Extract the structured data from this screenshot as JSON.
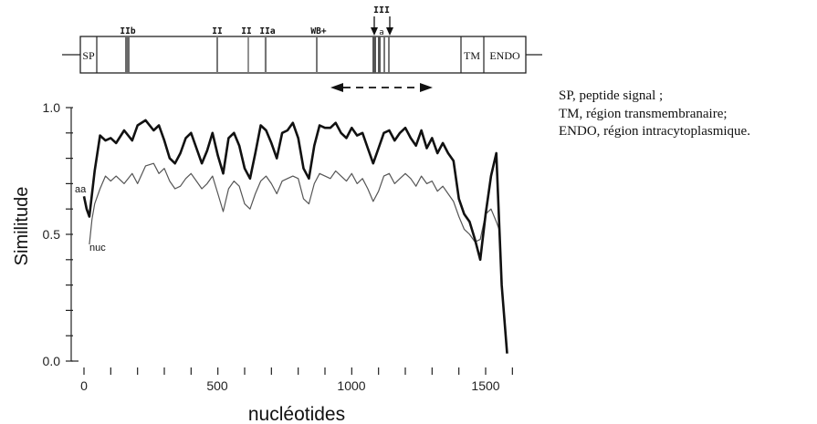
{
  "chart_data": {
    "type": "line",
    "ylabel": "Similitude",
    "xlabel": "nucléotides",
    "xlim": [
      0,
      1600
    ],
    "ylim": [
      0,
      1.0
    ],
    "x_ticks": [
      "0",
      "500",
      "1000",
      "1500"
    ],
    "y_ticks": [
      "0.0",
      "0.5",
      "1.0"
    ],
    "series": [
      {
        "name": "aa",
        "x": [
          0,
          10,
          20,
          40,
          60,
          80,
          100,
          120,
          150,
          180,
          200,
          230,
          260,
          280,
          300,
          320,
          340,
          360,
          380,
          400,
          420,
          440,
          460,
          480,
          500,
          520,
          540,
          560,
          580,
          600,
          620,
          640,
          660,
          680,
          700,
          720,
          740,
          760,
          780,
          800,
          820,
          840,
          860,
          880,
          900,
          920,
          940,
          960,
          980,
          1000,
          1020,
          1040,
          1060,
          1080,
          1100,
          1120,
          1140,
          1160,
          1180,
          1200,
          1220,
          1240,
          1260,
          1280,
          1300,
          1320,
          1340,
          1360,
          1380,
          1400,
          1420,
          1440,
          1460,
          1480,
          1500,
          1520,
          1540,
          1560,
          1580
        ],
        "values": [
          0.65,
          0.6,
          0.57,
          0.75,
          0.89,
          0.87,
          0.88,
          0.86,
          0.91,
          0.87,
          0.93,
          0.95,
          0.91,
          0.93,
          0.87,
          0.8,
          0.78,
          0.82,
          0.88,
          0.9,
          0.84,
          0.78,
          0.83,
          0.9,
          0.81,
          0.74,
          0.88,
          0.9,
          0.85,
          0.76,
          0.72,
          0.82,
          0.93,
          0.91,
          0.86,
          0.8,
          0.9,
          0.91,
          0.94,
          0.88,
          0.76,
          0.72,
          0.85,
          0.93,
          0.92,
          0.92,
          0.94,
          0.9,
          0.88,
          0.92,
          0.89,
          0.9,
          0.84,
          0.78,
          0.84,
          0.9,
          0.91,
          0.87,
          0.9,
          0.92,
          0.88,
          0.85,
          0.91,
          0.84,
          0.88,
          0.82,
          0.86,
          0.82,
          0.79,
          0.64,
          0.58,
          0.55,
          0.48,
          0.4,
          0.58,
          0.73,
          0.82,
          0.3,
          0.03
        ]
      },
      {
        "name": "nuc",
        "x": [
          20,
          30,
          40,
          60,
          80,
          100,
          120,
          150,
          180,
          200,
          230,
          260,
          280,
          300,
          320,
          340,
          360,
          380,
          400,
          420,
          440,
          460,
          480,
          500,
          520,
          540,
          560,
          580,
          600,
          620,
          640,
          660,
          680,
          700,
          720,
          740,
          760,
          780,
          800,
          820,
          840,
          860,
          880,
          900,
          920,
          940,
          960,
          980,
          1000,
          1020,
          1040,
          1060,
          1080,
          1100,
          1120,
          1140,
          1160,
          1180,
          1200,
          1220,
          1240,
          1260,
          1280,
          1300,
          1320,
          1340,
          1360,
          1380,
          1400,
          1420,
          1440,
          1460,
          1480,
          1500,
          1520,
          1540,
          1550
        ],
        "values": [
          0.46,
          0.56,
          0.62,
          0.68,
          0.73,
          0.71,
          0.73,
          0.7,
          0.74,
          0.7,
          0.77,
          0.78,
          0.74,
          0.76,
          0.71,
          0.68,
          0.69,
          0.72,
          0.74,
          0.71,
          0.68,
          0.7,
          0.73,
          0.66,
          0.59,
          0.68,
          0.71,
          0.69,
          0.62,
          0.6,
          0.66,
          0.71,
          0.73,
          0.7,
          0.66,
          0.71,
          0.72,
          0.73,
          0.72,
          0.64,
          0.62,
          0.7,
          0.74,
          0.73,
          0.72,
          0.75,
          0.73,
          0.71,
          0.74,
          0.7,
          0.72,
          0.68,
          0.63,
          0.67,
          0.73,
          0.74,
          0.7,
          0.72,
          0.74,
          0.72,
          0.69,
          0.73,
          0.7,
          0.71,
          0.67,
          0.69,
          0.66,
          0.63,
          0.57,
          0.52,
          0.5,
          0.47,
          0.48,
          0.58,
          0.6,
          0.55,
          0.52
        ]
      }
    ]
  },
  "gene_map": {
    "segments": [
      "SP",
      "TM",
      "ENDO"
    ],
    "motifs": [
      "IIb",
      "II",
      "II",
      "IIa",
      "WB+",
      "III",
      "a"
    ]
  },
  "legend_lines": [
    "SP, peptide signal ;",
    "TM, région transmembranaire;",
    "ENDO, région intracytoplasmique."
  ]
}
